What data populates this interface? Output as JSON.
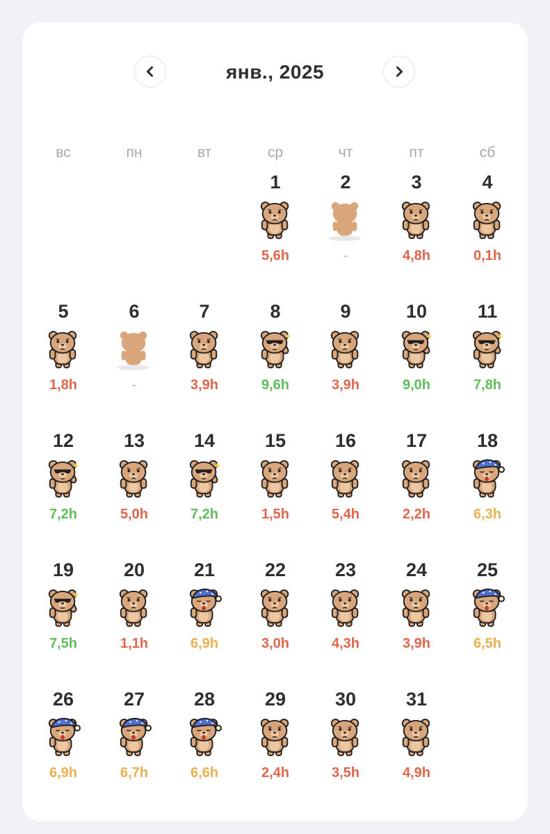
{
  "calendar": {
    "title": "янв., 2025",
    "prev_label": "previous month",
    "next_label": "next month",
    "weekdays": [
      "вс",
      "пн",
      "вт",
      "ср",
      "чт",
      "пт",
      "сб"
    ],
    "first_weekday_index": 3,
    "colors": {
      "red": "#e0654a",
      "green": "#5fbd5a",
      "orange": "#e9b04f",
      "gray": "#b4b5ba"
    },
    "days": [
      {
        "day": "1",
        "hours": "5,6h",
        "status": "red",
        "bear": "neutral"
      },
      {
        "day": "2",
        "hours": "-",
        "status": "gray",
        "bear": "away"
      },
      {
        "day": "3",
        "hours": "4,8h",
        "status": "red",
        "bear": "neutral"
      },
      {
        "day": "4",
        "hours": "0,1h",
        "status": "red",
        "bear": "neutral"
      },
      {
        "day": "5",
        "hours": "1,8h",
        "status": "red",
        "bear": "neutral"
      },
      {
        "day": "6",
        "hours": "-",
        "status": "gray",
        "bear": "away"
      },
      {
        "day": "7",
        "hours": "3,9h",
        "status": "red",
        "bear": "neutral"
      },
      {
        "day": "8",
        "hours": "9,6h",
        "status": "green",
        "bear": "cool"
      },
      {
        "day": "9",
        "hours": "3,9h",
        "status": "red",
        "bear": "neutral"
      },
      {
        "day": "10",
        "hours": "9,0h",
        "status": "green",
        "bear": "cool"
      },
      {
        "day": "11",
        "hours": "7,8h",
        "status": "green",
        "bear": "cool"
      },
      {
        "day": "12",
        "hours": "7,2h",
        "status": "green",
        "bear": "cool"
      },
      {
        "day": "13",
        "hours": "5,0h",
        "status": "red",
        "bear": "neutral"
      },
      {
        "day": "14",
        "hours": "7,2h",
        "status": "green",
        "bear": "cool"
      },
      {
        "day": "15",
        "hours": "1,5h",
        "status": "red",
        "bear": "neutral"
      },
      {
        "day": "16",
        "hours": "5,4h",
        "status": "red",
        "bear": "neutral"
      },
      {
        "day": "17",
        "hours": "2,2h",
        "status": "red",
        "bear": "neutral"
      },
      {
        "day": "18",
        "hours": "6,3h",
        "status": "orange",
        "bear": "sleepy"
      },
      {
        "day": "19",
        "hours": "7,5h",
        "status": "green",
        "bear": "cool"
      },
      {
        "day": "20",
        "hours": "1,1h",
        "status": "red",
        "bear": "neutral"
      },
      {
        "day": "21",
        "hours": "6,9h",
        "status": "orange",
        "bear": "sleepy"
      },
      {
        "day": "22",
        "hours": "3,0h",
        "status": "red",
        "bear": "neutral"
      },
      {
        "day": "23",
        "hours": "4,3h",
        "status": "red",
        "bear": "neutral"
      },
      {
        "day": "24",
        "hours": "3,9h",
        "status": "red",
        "bear": "neutral"
      },
      {
        "day": "25",
        "hours": "6,5h",
        "status": "orange",
        "bear": "sleepy"
      },
      {
        "day": "26",
        "hours": "6,9h",
        "status": "orange",
        "bear": "sleepy"
      },
      {
        "day": "27",
        "hours": "6,7h",
        "status": "orange",
        "bear": "sleepy"
      },
      {
        "day": "28",
        "hours": "6,6h",
        "status": "orange",
        "bear": "sleepy"
      },
      {
        "day": "29",
        "hours": "2,4h",
        "status": "red",
        "bear": "neutral"
      },
      {
        "day": "30",
        "hours": "3,5h",
        "status": "red",
        "bear": "neutral"
      },
      {
        "day": "31",
        "hours": "4,9h",
        "status": "red",
        "bear": "neutral"
      }
    ]
  }
}
